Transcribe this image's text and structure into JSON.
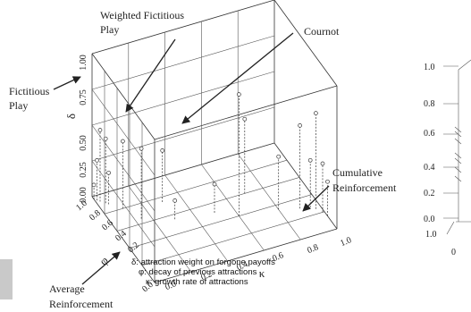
{
  "chart_data": [
    {
      "type": "scatter3d",
      "zlabel": "δ",
      "xlabel": "φ",
      "ylabel": "κ",
      "xlim": [
        0.0,
        1.0
      ],
      "ylim": [
        0.0,
        1.0
      ],
      "zlim": [
        0.0,
        1.0
      ],
      "z_ticks": [
        "0.00",
        "0.25",
        "0.50",
        "0.75",
        "1.00"
      ],
      "phi_ticks": [
        "1.0",
        "0.8",
        "0.6",
        "0.4",
        "0.2",
        "0.0"
      ],
      "kappa_ticks": [
        "0.0",
        "0.2",
        "0.4",
        "0.6",
        "0.8",
        "1.0"
      ],
      "legend": [
        "δ: attraction weight on forgone payoffs",
        "φ: decay of previous attractions",
        "κ: growth rate of attractions"
      ],
      "annotations": {
        "weighted_fictitious_play": [
          "Weighted Fictitious",
          "Play"
        ],
        "cournot": [
          "Cournot"
        ],
        "fictitious_play": [
          "Fictitious",
          "Play"
        ],
        "cumulative_reinforcement": [
          "Cumulative",
          "Reinforcement"
        ],
        "average_reinforcement": [
          "Average",
          "Reinforcement"
        ]
      },
      "points": [
        {
          "phi": 0.97,
          "kappa": 0.0,
          "delta": 0.1
        },
        {
          "phi": 0.95,
          "kappa": 0.01,
          "delta": 0.28
        },
        {
          "phi": 0.93,
          "kappa": 0.02,
          "delta": 0.5
        },
        {
          "phi": 0.9,
          "kappa": 0.04,
          "delta": 0.45
        },
        {
          "phi": 0.88,
          "kappa": 0.05,
          "delta": 0.22
        },
        {
          "phi": 0.8,
          "kappa": 0.1,
          "delta": 0.47
        },
        {
          "phi": 0.65,
          "kappa": 0.15,
          "delta": 0.49
        },
        {
          "phi": 0.55,
          "kappa": 0.3,
          "delta": 0.13
        },
        {
          "phi": 0.4,
          "kappa": 0.6,
          "delta": 0.85
        },
        {
          "phi": 0.35,
          "kappa": 0.8,
          "delta": 0.37
        },
        {
          "phi": 0.3,
          "kappa": 0.9,
          "delta": 0.58
        },
        {
          "phi": 0.28,
          "kappa": 0.95,
          "delta": 0.33
        },
        {
          "phi": 0.25,
          "kappa": 0.97,
          "delta": 0.67
        },
        {
          "phi": 0.2,
          "kappa": 0.99,
          "delta": 0.34
        },
        {
          "phi": 0.15,
          "kappa": 1.0,
          "delta": 0.24
        },
        {
          "phi": 0.6,
          "kappa": 0.7,
          "delta": 0.52
        },
        {
          "phi": 0.75,
          "kappa": 0.3,
          "delta": 0.36
        },
        {
          "phi": 0.5,
          "kappa": 0.5,
          "delta": 0.2
        }
      ]
    },
    {
      "type": "scatter",
      "ylim": [
        0.0,
        1.0
      ],
      "y_ticks": [
        "1.0",
        "0.8",
        "0.6",
        "0.4",
        "0.2",
        "0.0"
      ],
      "x_ticks": [
        "1.0",
        "0"
      ]
    }
  ]
}
